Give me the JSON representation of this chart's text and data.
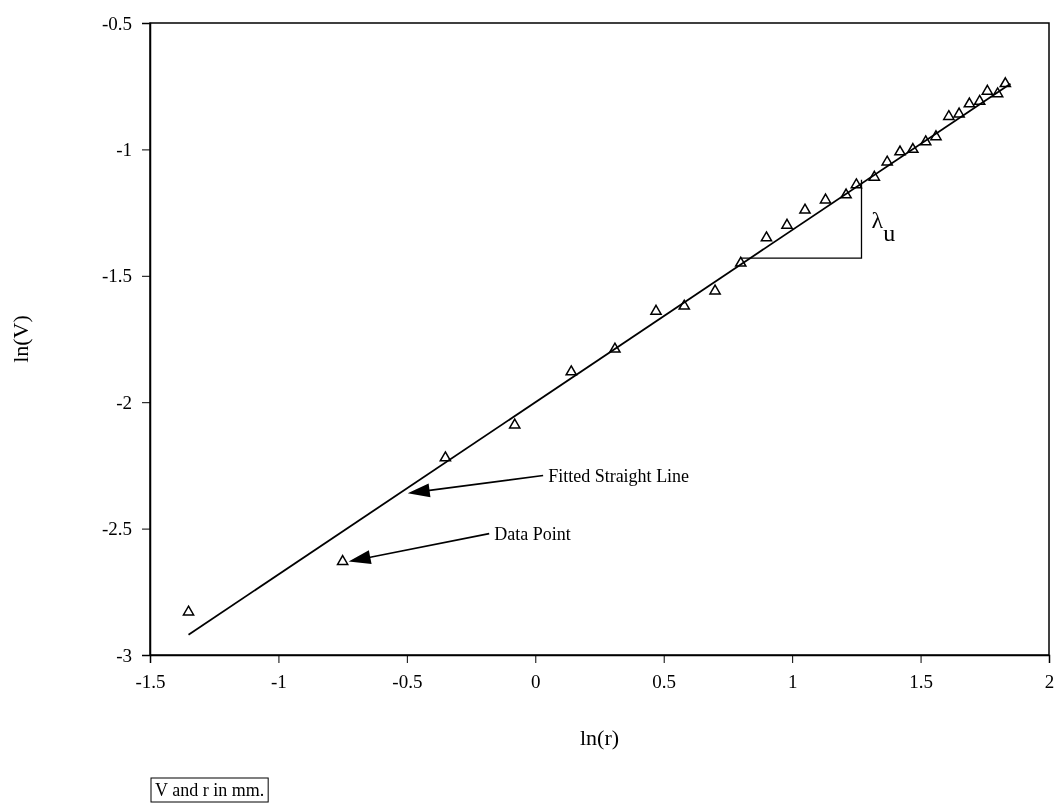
{
  "chart_data": {
    "type": "scatter",
    "xlabel": "ln(r)",
    "ylabel": "ln(V)",
    "xlim": [
      -1.5,
      2
    ],
    "ylim": [
      -3,
      -0.5
    ],
    "xticks": [
      -1.5,
      -1,
      -0.5,
      0,
      0.5,
      1,
      1.5,
      2
    ],
    "yticks": [
      -3,
      -2.5,
      -2,
      -1.5,
      -1,
      -0.5
    ],
    "grid": false,
    "series": [
      {
        "color": "#000000",
        "marker": "triangle",
        "x": [
          -1.35,
          -0.75,
          -0.35,
          -0.08,
          0.14,
          0.31,
          0.47,
          0.58,
          0.7,
          0.8,
          0.9,
          0.98,
          1.05,
          1.13,
          1.21,
          1.25,
          1.32,
          1.37,
          1.42,
          1.47,
          1.52,
          1.56,
          1.61,
          1.65,
          1.69,
          1.73,
          1.76,
          1.8,
          1.83
        ],
        "values": [
          -2.83,
          -2.63,
          -2.22,
          -2.09,
          -1.88,
          -1.79,
          -1.64,
          -1.62,
          -1.56,
          -1.45,
          -1.35,
          -1.3,
          -1.24,
          -1.2,
          -1.18,
          -1.14,
          -1.11,
          -1.05,
          -1.01,
          -1.0,
          -0.97,
          -0.95,
          -0.87,
          -0.86,
          -0.82,
          -0.81,
          -0.77,
          -0.78,
          -0.74
        ]
      },
      {
        "type": "line",
        "color": "#000000",
        "marker": "none",
        "line_style": "solid",
        "x": [
          -1.35,
          1.85
        ],
        "values": [
          -2.92,
          -0.74
        ]
      }
    ],
    "annotations": [
      "Fitted Straight Line",
      "Data Point",
      {
        "text": "λ$_{u}$",
        "x": 1.27,
        "y": -1.135
      },
      "V and r in mm."
    ]
  }
}
